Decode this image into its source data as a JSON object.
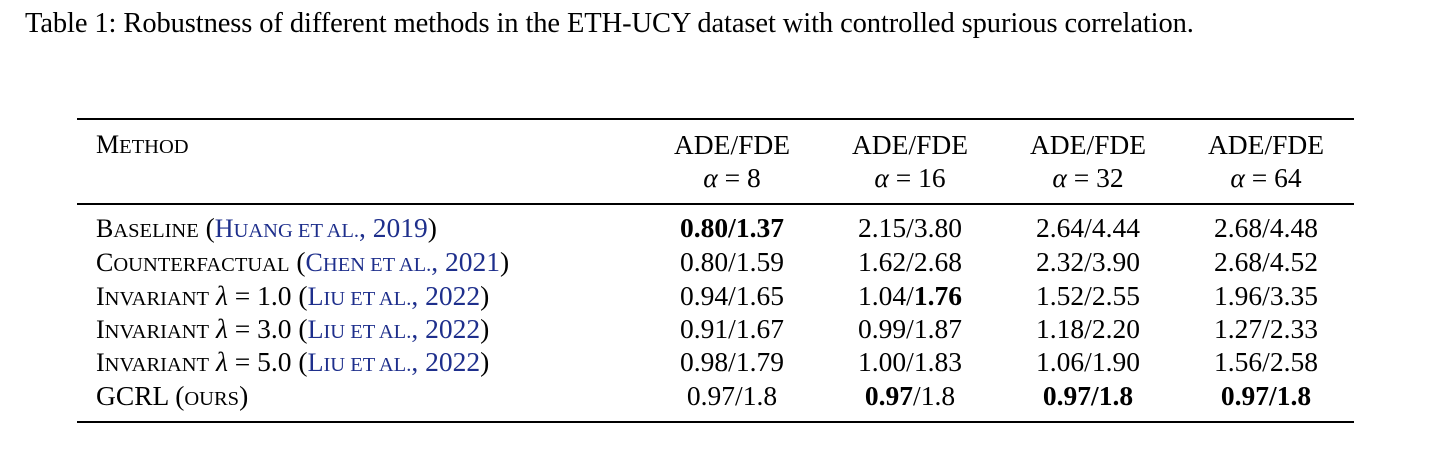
{
  "caption": "Table 1: Robustness of different methods in the ETH-UCY dataset with controlled spurious correlation.",
  "header": {
    "method_first": "M",
    "method_rest": "ETHOD",
    "columns": [
      {
        "metric": "ADE/FDE",
        "alpha_symbol": "α",
        "alpha_value": "8"
      },
      {
        "metric": "ADE/FDE",
        "alpha_symbol": "α",
        "alpha_value": "16"
      },
      {
        "metric": "ADE/FDE",
        "alpha_symbol": "α",
        "alpha_value": "32"
      },
      {
        "metric": "ADE/FDE",
        "alpha_symbol": "α",
        "alpha_value": "64"
      }
    ]
  },
  "rows": [
    {
      "method": {
        "name_first": "B",
        "name_rest": "ASELINE",
        "param": "",
        "cite_author_first": "H",
        "cite_author_rest": "UANG ET AL.",
        "cite_year": "2019"
      },
      "cells": [
        {
          "ade": "0.80",
          "fde": "1.37",
          "ade_bold": true,
          "fde_bold": true
        },
        {
          "ade": "2.15",
          "fde": "3.80",
          "ade_bold": false,
          "fde_bold": false
        },
        {
          "ade": "2.64",
          "fde": "4.44",
          "ade_bold": false,
          "fde_bold": false
        },
        {
          "ade": "2.68",
          "fde": "4.48",
          "ade_bold": false,
          "fde_bold": false
        }
      ]
    },
    {
      "method": {
        "name_first": "C",
        "name_rest": "OUNTERFACTUAL",
        "param": "",
        "cite_author_first": "C",
        "cite_author_rest": "HEN ET AL.",
        "cite_year": "2021"
      },
      "cells": [
        {
          "ade": "0.80",
          "fde": "1.59",
          "ade_bold": false,
          "fde_bold": false
        },
        {
          "ade": "1.62",
          "fde": "2.68",
          "ade_bold": false,
          "fde_bold": false
        },
        {
          "ade": "2.32",
          "fde": "3.90",
          "ade_bold": false,
          "fde_bold": false
        },
        {
          "ade": "2.68",
          "fde": "4.52",
          "ade_bold": false,
          "fde_bold": false
        }
      ]
    },
    {
      "method": {
        "name_first": "I",
        "name_rest": "NVARIANT",
        "param": "λ = 1.0",
        "cite_author_first": "L",
        "cite_author_rest": "IU ET AL.",
        "cite_year": "2022"
      },
      "cells": [
        {
          "ade": "0.94",
          "fde": "1.65",
          "ade_bold": false,
          "fde_bold": false
        },
        {
          "ade": "1.04",
          "fde": "1.76",
          "ade_bold": false,
          "fde_bold": true
        },
        {
          "ade": "1.52",
          "fde": "2.55",
          "ade_bold": false,
          "fde_bold": false
        },
        {
          "ade": "1.96",
          "fde": "3.35",
          "ade_bold": false,
          "fde_bold": false
        }
      ]
    },
    {
      "method": {
        "name_first": "I",
        "name_rest": "NVARIANT",
        "param": "λ = 3.0",
        "cite_author_first": "L",
        "cite_author_rest": "IU ET AL.",
        "cite_year": "2022"
      },
      "cells": [
        {
          "ade": "0.91",
          "fde": "1.67",
          "ade_bold": false,
          "fde_bold": false
        },
        {
          "ade": "0.99",
          "fde": "1.87",
          "ade_bold": false,
          "fde_bold": false
        },
        {
          "ade": "1.18",
          "fde": "2.20",
          "ade_bold": false,
          "fde_bold": false
        },
        {
          "ade": "1.27",
          "fde": "2.33",
          "ade_bold": false,
          "fde_bold": false
        }
      ]
    },
    {
      "method": {
        "name_first": "I",
        "name_rest": "NVARIANT",
        "param": "λ = 5.0",
        "cite_author_first": "L",
        "cite_author_rest": "IU ET AL.",
        "cite_year": "2022"
      },
      "cells": [
        {
          "ade": "0.98",
          "fde": "1.79",
          "ade_bold": false,
          "fde_bold": false
        },
        {
          "ade": "1.00",
          "fde": "1.83",
          "ade_bold": false,
          "fde_bold": false
        },
        {
          "ade": "1.06",
          "fde": "1.90",
          "ade_bold": false,
          "fde_bold": false
        },
        {
          "ade": "1.56",
          "fde": "2.58",
          "ade_bold": false,
          "fde_bold": false
        }
      ]
    },
    {
      "method": {
        "name_first": "GCRL",
        "name_rest": "",
        "param": "",
        "ours_open": "(",
        "ours_label": "OURS",
        "ours_close": ")"
      },
      "cells": [
        {
          "ade": "0.97",
          "fde": "1.8",
          "ade_bold": false,
          "fde_bold": false
        },
        {
          "ade": "0.97",
          "fde": "1.8",
          "ade_bold": true,
          "fde_bold": false
        },
        {
          "ade": "0.97",
          "fde": "1.8",
          "ade_bold": true,
          "fde_bold": true
        },
        {
          "ade": "0.97",
          "fde": "1.8",
          "ade_bold": true,
          "fde_bold": true
        }
      ]
    }
  ]
}
